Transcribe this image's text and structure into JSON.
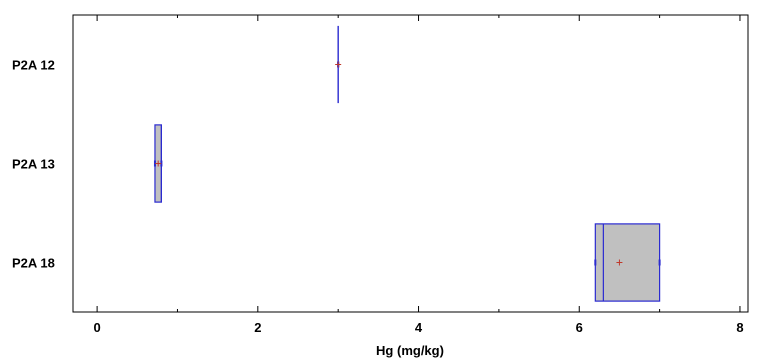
{
  "chart_data": {
    "type": "boxplot",
    "orientation": "horizontal",
    "title": "",
    "xlabel": "Hg (mg/kg)",
    "ylabel": "",
    "xlim": [
      -0.3,
      8.1
    ],
    "x_ticks": [
      0,
      2,
      4,
      6,
      8
    ],
    "grid": false,
    "legend": "none",
    "colors": {
      "box_fill": "#c0c0c0",
      "box_edge": "#2a2ad0",
      "mean_marker": "#c0392b",
      "axis": "#000000"
    },
    "categories": [
      "P2A 12",
      "P2A 13",
      "P2A 18"
    ],
    "boxes": [
      {
        "label": "P2A 12",
        "min": 3.0,
        "q1": 3.0,
        "median": 3.0,
        "q3": 3.0,
        "max": 3.0,
        "mean": 3.0
      },
      {
        "label": "P2A 13",
        "min": 0.72,
        "q1": 0.72,
        "median": 0.8,
        "q3": 0.8,
        "max": 0.8,
        "mean": 0.76
      },
      {
        "label": "P2A 18",
        "min": 6.2,
        "q1": 6.2,
        "median": 6.3,
        "q3": 7.0,
        "max": 7.0,
        "mean": 6.5
      }
    ]
  }
}
